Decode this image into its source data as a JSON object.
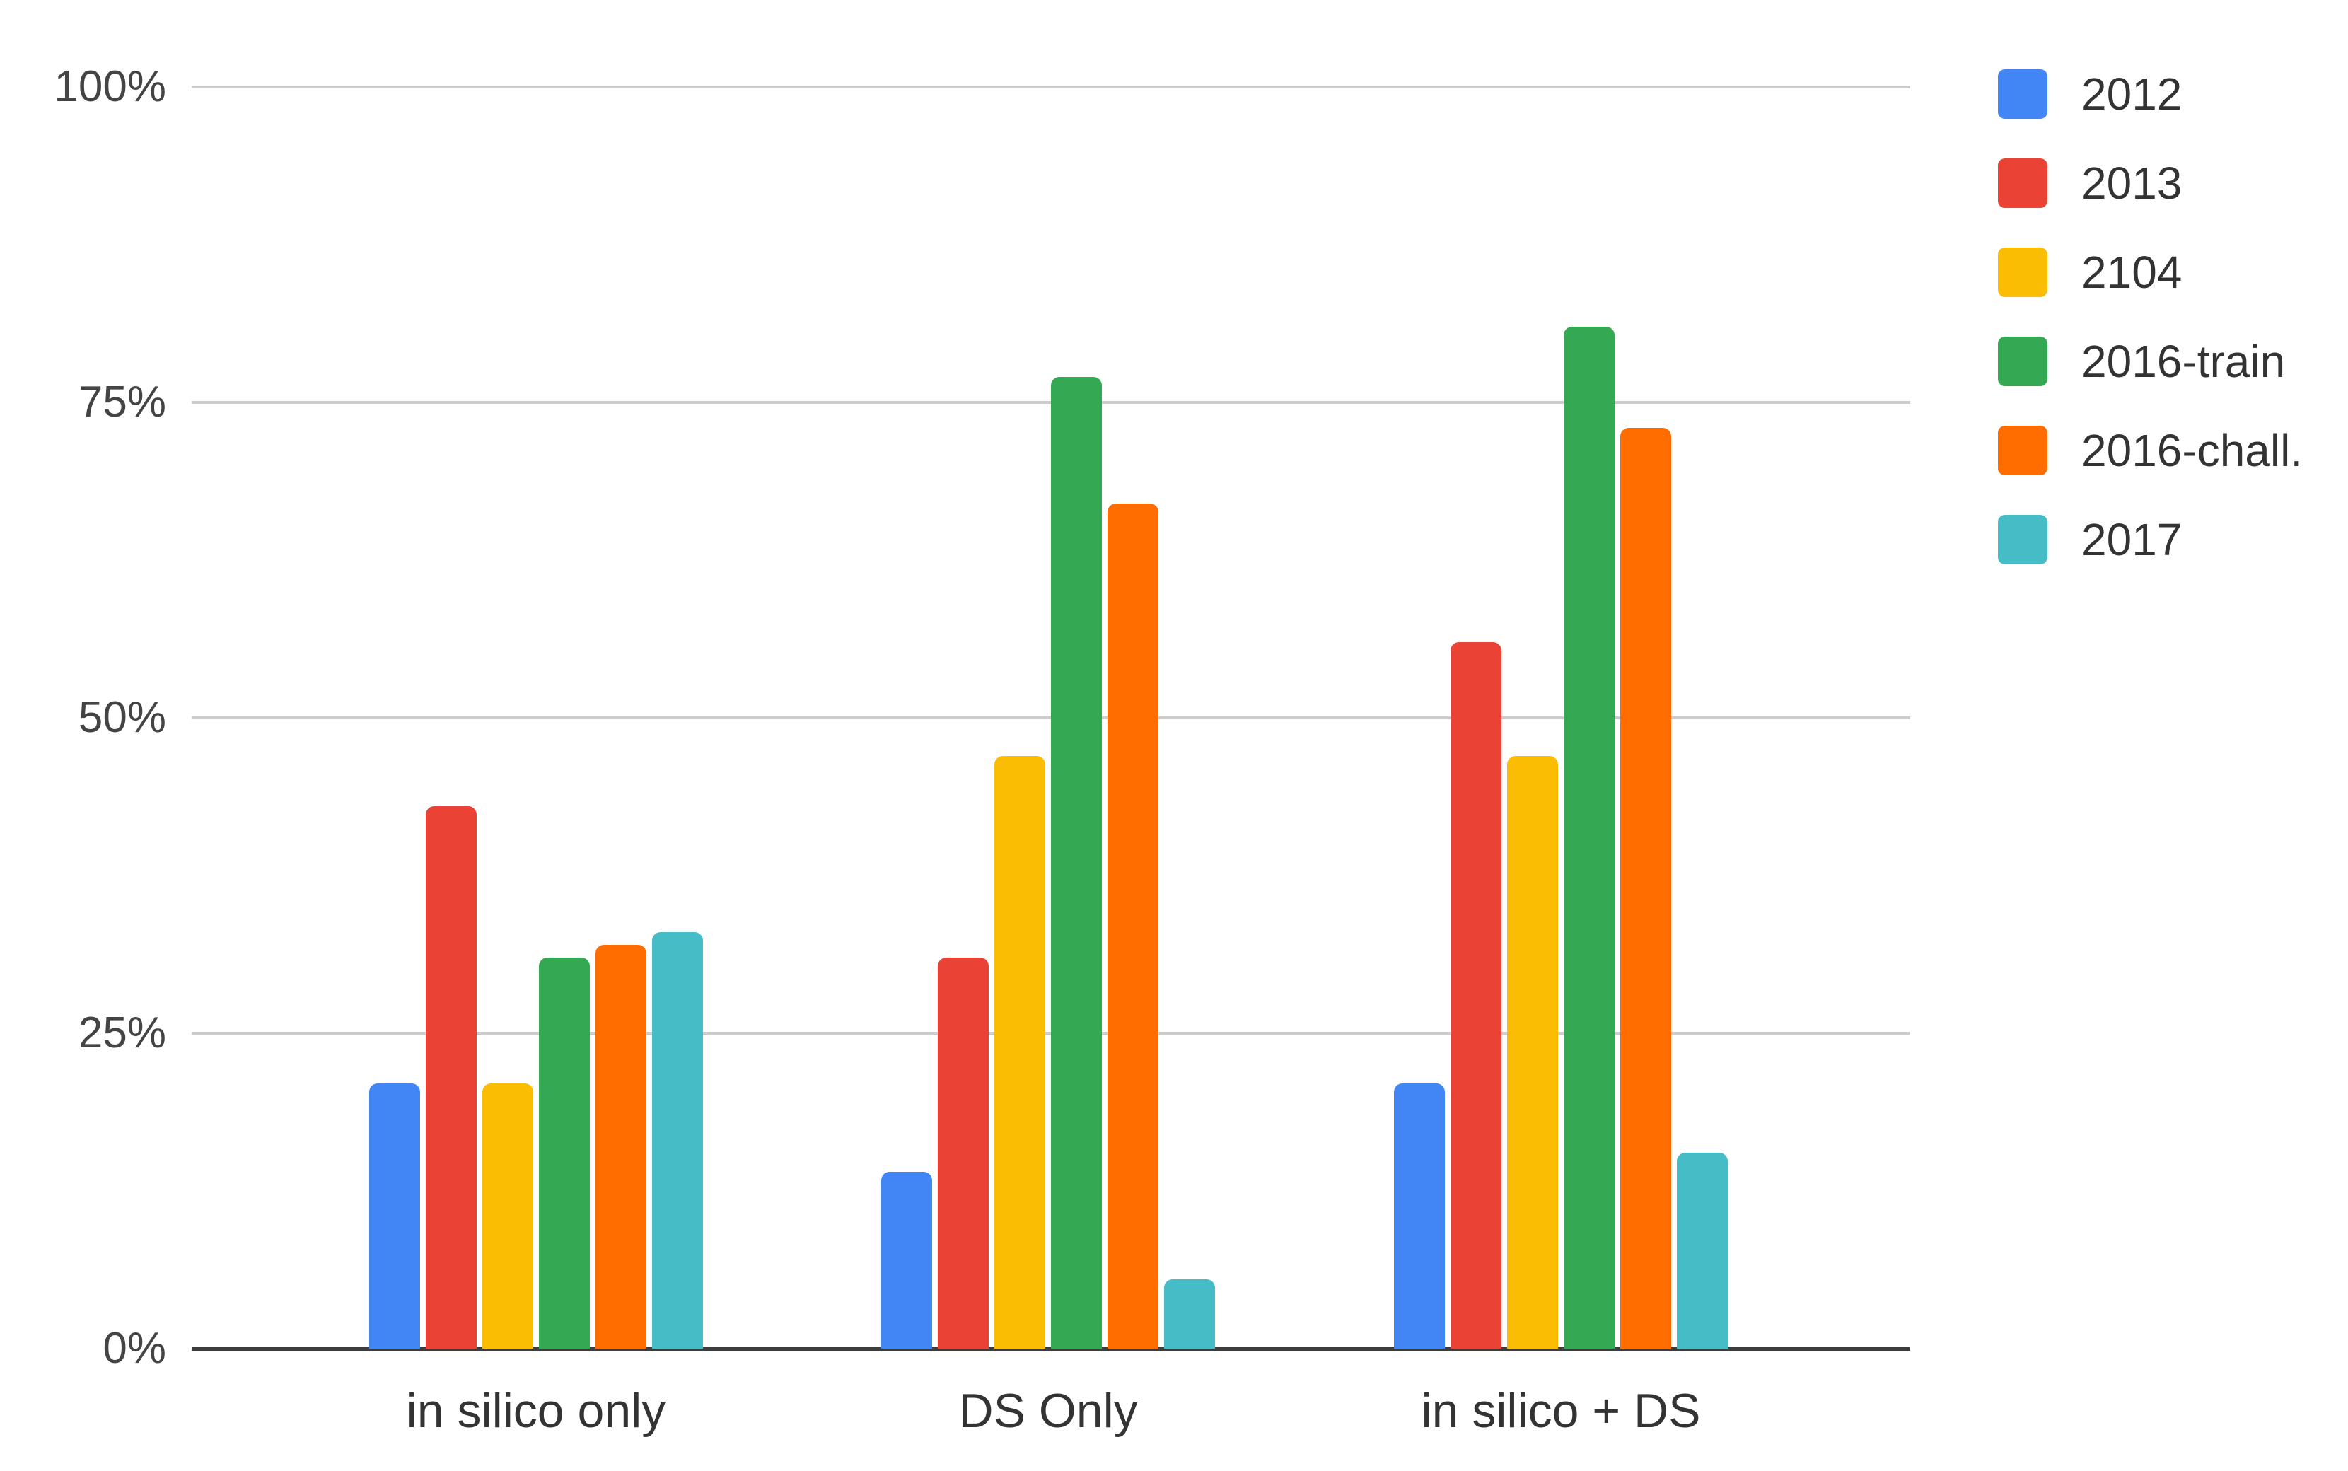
{
  "chart_data": {
    "type": "bar",
    "title": "",
    "categories": [
      "in silico only",
      "DS Only",
      "in silico + DS"
    ],
    "series": [
      {
        "name": "2012",
        "color": "#4285F4",
        "values": [
          21,
          14,
          21
        ]
      },
      {
        "name": "2013",
        "color": "#EA4335",
        "values": [
          43,
          31,
          56
        ]
      },
      {
        "name": "2104",
        "color": "#FBBC04",
        "values": [
          21,
          47,
          47
        ]
      },
      {
        "name": "2016-train",
        "color": "#34A853",
        "values": [
          31,
          77,
          81
        ]
      },
      {
        "name": "2016-chall.",
        "color": "#FF6D00",
        "values": [
          32,
          67,
          73
        ]
      },
      {
        "name": "2017",
        "color": "#46BDC6",
        "values": [
          33,
          5.5,
          15.5
        ]
      }
    ],
    "xlabel": "",
    "ylabel": "",
    "y_ticks": [
      "0%",
      "25%",
      "50%",
      "75%",
      "100%"
    ],
    "y_tick_values": [
      0,
      25,
      50,
      75,
      100
    ],
    "ylim": [
      0,
      100
    ],
    "grid": true,
    "legend_position": "right"
  },
  "styles": {
    "background": "#ffffff",
    "grid_color": "#cccccc",
    "axis_line_color": "#3c3c3c",
    "y_tick_label_color": "#444444",
    "x_label_color": "#333333",
    "legend_label_color": "#333333"
  }
}
